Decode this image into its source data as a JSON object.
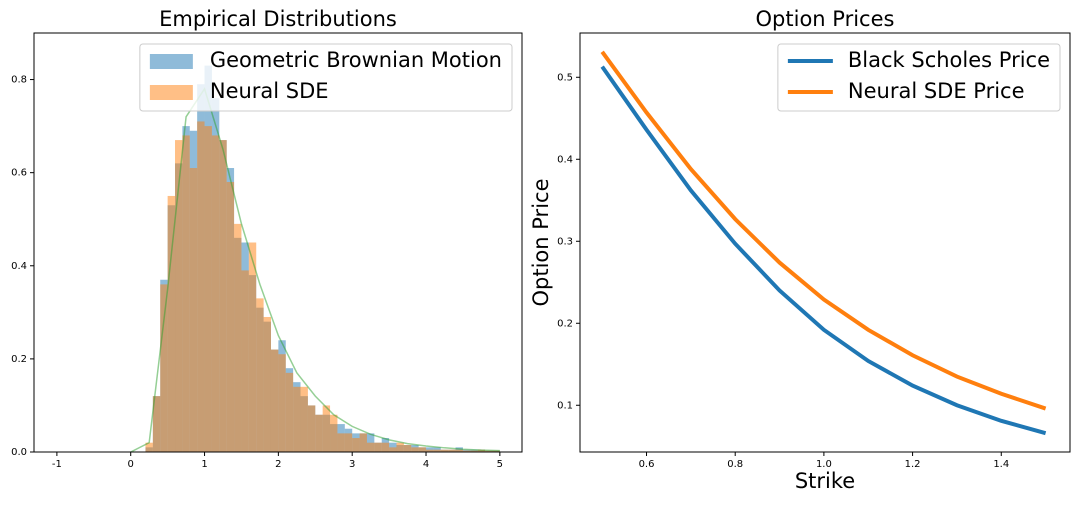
{
  "chart_data": [
    {
      "type": "histogram",
      "title": "Empirical Distributions",
      "bins": [
        0.2,
        0.3,
        0.4,
        0.5,
        0.6,
        0.7,
        0.8,
        0.9,
        1.0,
        1.1,
        1.2,
        1.3,
        1.4,
        1.5,
        1.6,
        1.7,
        1.8,
        1.9,
        2.0,
        2.1,
        2.2,
        2.3,
        2.4,
        2.5,
        2.6,
        2.7,
        2.8,
        2.9,
        3.0,
        3.1,
        3.2,
        3.3,
        3.4,
        3.5,
        3.6,
        3.7,
        3.8,
        3.9,
        4.0,
        4.1,
        4.2,
        4.3,
        4.4,
        4.5,
        4.6,
        4.7,
        4.8,
        4.9,
        5.0
      ],
      "series": [
        {
          "name": "Geometric Brownian Motion",
          "color": "#1f77b4",
          "values": [
            0.01,
            0.12,
            0.37,
            0.53,
            0.62,
            0.7,
            0.69,
            0.79,
            0.83,
            0.76,
            0.67,
            0.61,
            0.46,
            0.45,
            0.38,
            0.31,
            0.28,
            0.22,
            0.24,
            0.18,
            0.15,
            0.12,
            0.1,
            0.08,
            0.08,
            0.06,
            0.06,
            0.05,
            0.04,
            0.04,
            0.04,
            0.02,
            0.03,
            0.02,
            0.015,
            0.015,
            0.015,
            0.01,
            0.01,
            0.01,
            0.005,
            0.005,
            0.01,
            0.005,
            0.005,
            0.005,
            0.003,
            0.003
          ]
        },
        {
          "name": "Neural SDE",
          "color": "#ff7f0e",
          "values": [
            0.02,
            0.12,
            0.36,
            0.55,
            0.67,
            0.68,
            0.61,
            0.71,
            0.7,
            0.68,
            0.67,
            0.58,
            0.49,
            0.39,
            0.45,
            0.33,
            0.29,
            0.22,
            0.21,
            0.17,
            0.14,
            0.14,
            0.1,
            0.08,
            0.1,
            0.08,
            0.04,
            0.04,
            0.03,
            0.04,
            0.02,
            0.02,
            0.02,
            0.01,
            0.02,
            0.015,
            0.01,
            0.01,
            0.005,
            0.005,
            0.005,
            0.005,
            0.005,
            0.003,
            0.003,
            0.005,
            0.003,
            0.003
          ]
        }
      ],
      "density": {
        "color": "#2ca02c",
        "x": [
          0,
          0.25,
          0.5,
          0.75,
          1.0,
          1.25,
          1.5,
          1.75,
          2.0,
          2.25,
          2.5,
          2.75,
          3.0,
          3.25,
          3.5,
          3.75,
          4.0,
          4.25,
          4.5,
          4.75,
          5.0
        ],
        "values": [
          0,
          0.02,
          0.35,
          0.72,
          0.78,
          0.65,
          0.49,
          0.36,
          0.25,
          0.17,
          0.12,
          0.08,
          0.055,
          0.038,
          0.026,
          0.018,
          0.013,
          0.009,
          0.006,
          0.004,
          0.003
        ]
      },
      "xlim": [
        -1.31,
        5.3
      ],
      "xticks": [
        -1,
        0,
        1,
        2,
        3,
        4,
        5
      ],
      "ylim": [
        0,
        0.9
      ],
      "yticks": [
        {
          "value": 0,
          "label": "0.0"
        },
        0.2,
        0.4,
        0.6,
        0.8
      ],
      "legend": "upper right"
    },
    {
      "type": "line",
      "title": "Option Prices",
      "x_label": "Strike",
      "y_label": "Option Price",
      "x": [
        0.5,
        0.6,
        0.7,
        0.8,
        0.9,
        1.0,
        1.1,
        1.2,
        1.3,
        1.4,
        1.5
      ],
      "series": [
        {
          "name": "Black Scholes Price",
          "color": "#1f77b4",
          "values": [
            0.513,
            0.436,
            0.362,
            0.297,
            0.24,
            0.192,
            0.154,
            0.124,
            0.1,
            0.081,
            0.066
          ]
        },
        {
          "name": "Neural SDE Price",
          "color": "#ff7f0e",
          "values": [
            0.531,
            0.457,
            0.388,
            0.327,
            0.274,
            0.229,
            0.192,
            0.161,
            0.135,
            0.114,
            0.096
          ]
        }
      ],
      "xlim": [
        0.45,
        1.555
      ],
      "xticks": [
        0.6,
        0.8,
        {
          "value": 1.0,
          "label": "1.0"
        },
        1.2,
        1.4
      ],
      "ylim": [
        0.043,
        0.554
      ],
      "yticks": [
        0.1,
        0.2,
        0.3,
        0.4,
        0.5
      ],
      "legend": "upper right"
    }
  ]
}
